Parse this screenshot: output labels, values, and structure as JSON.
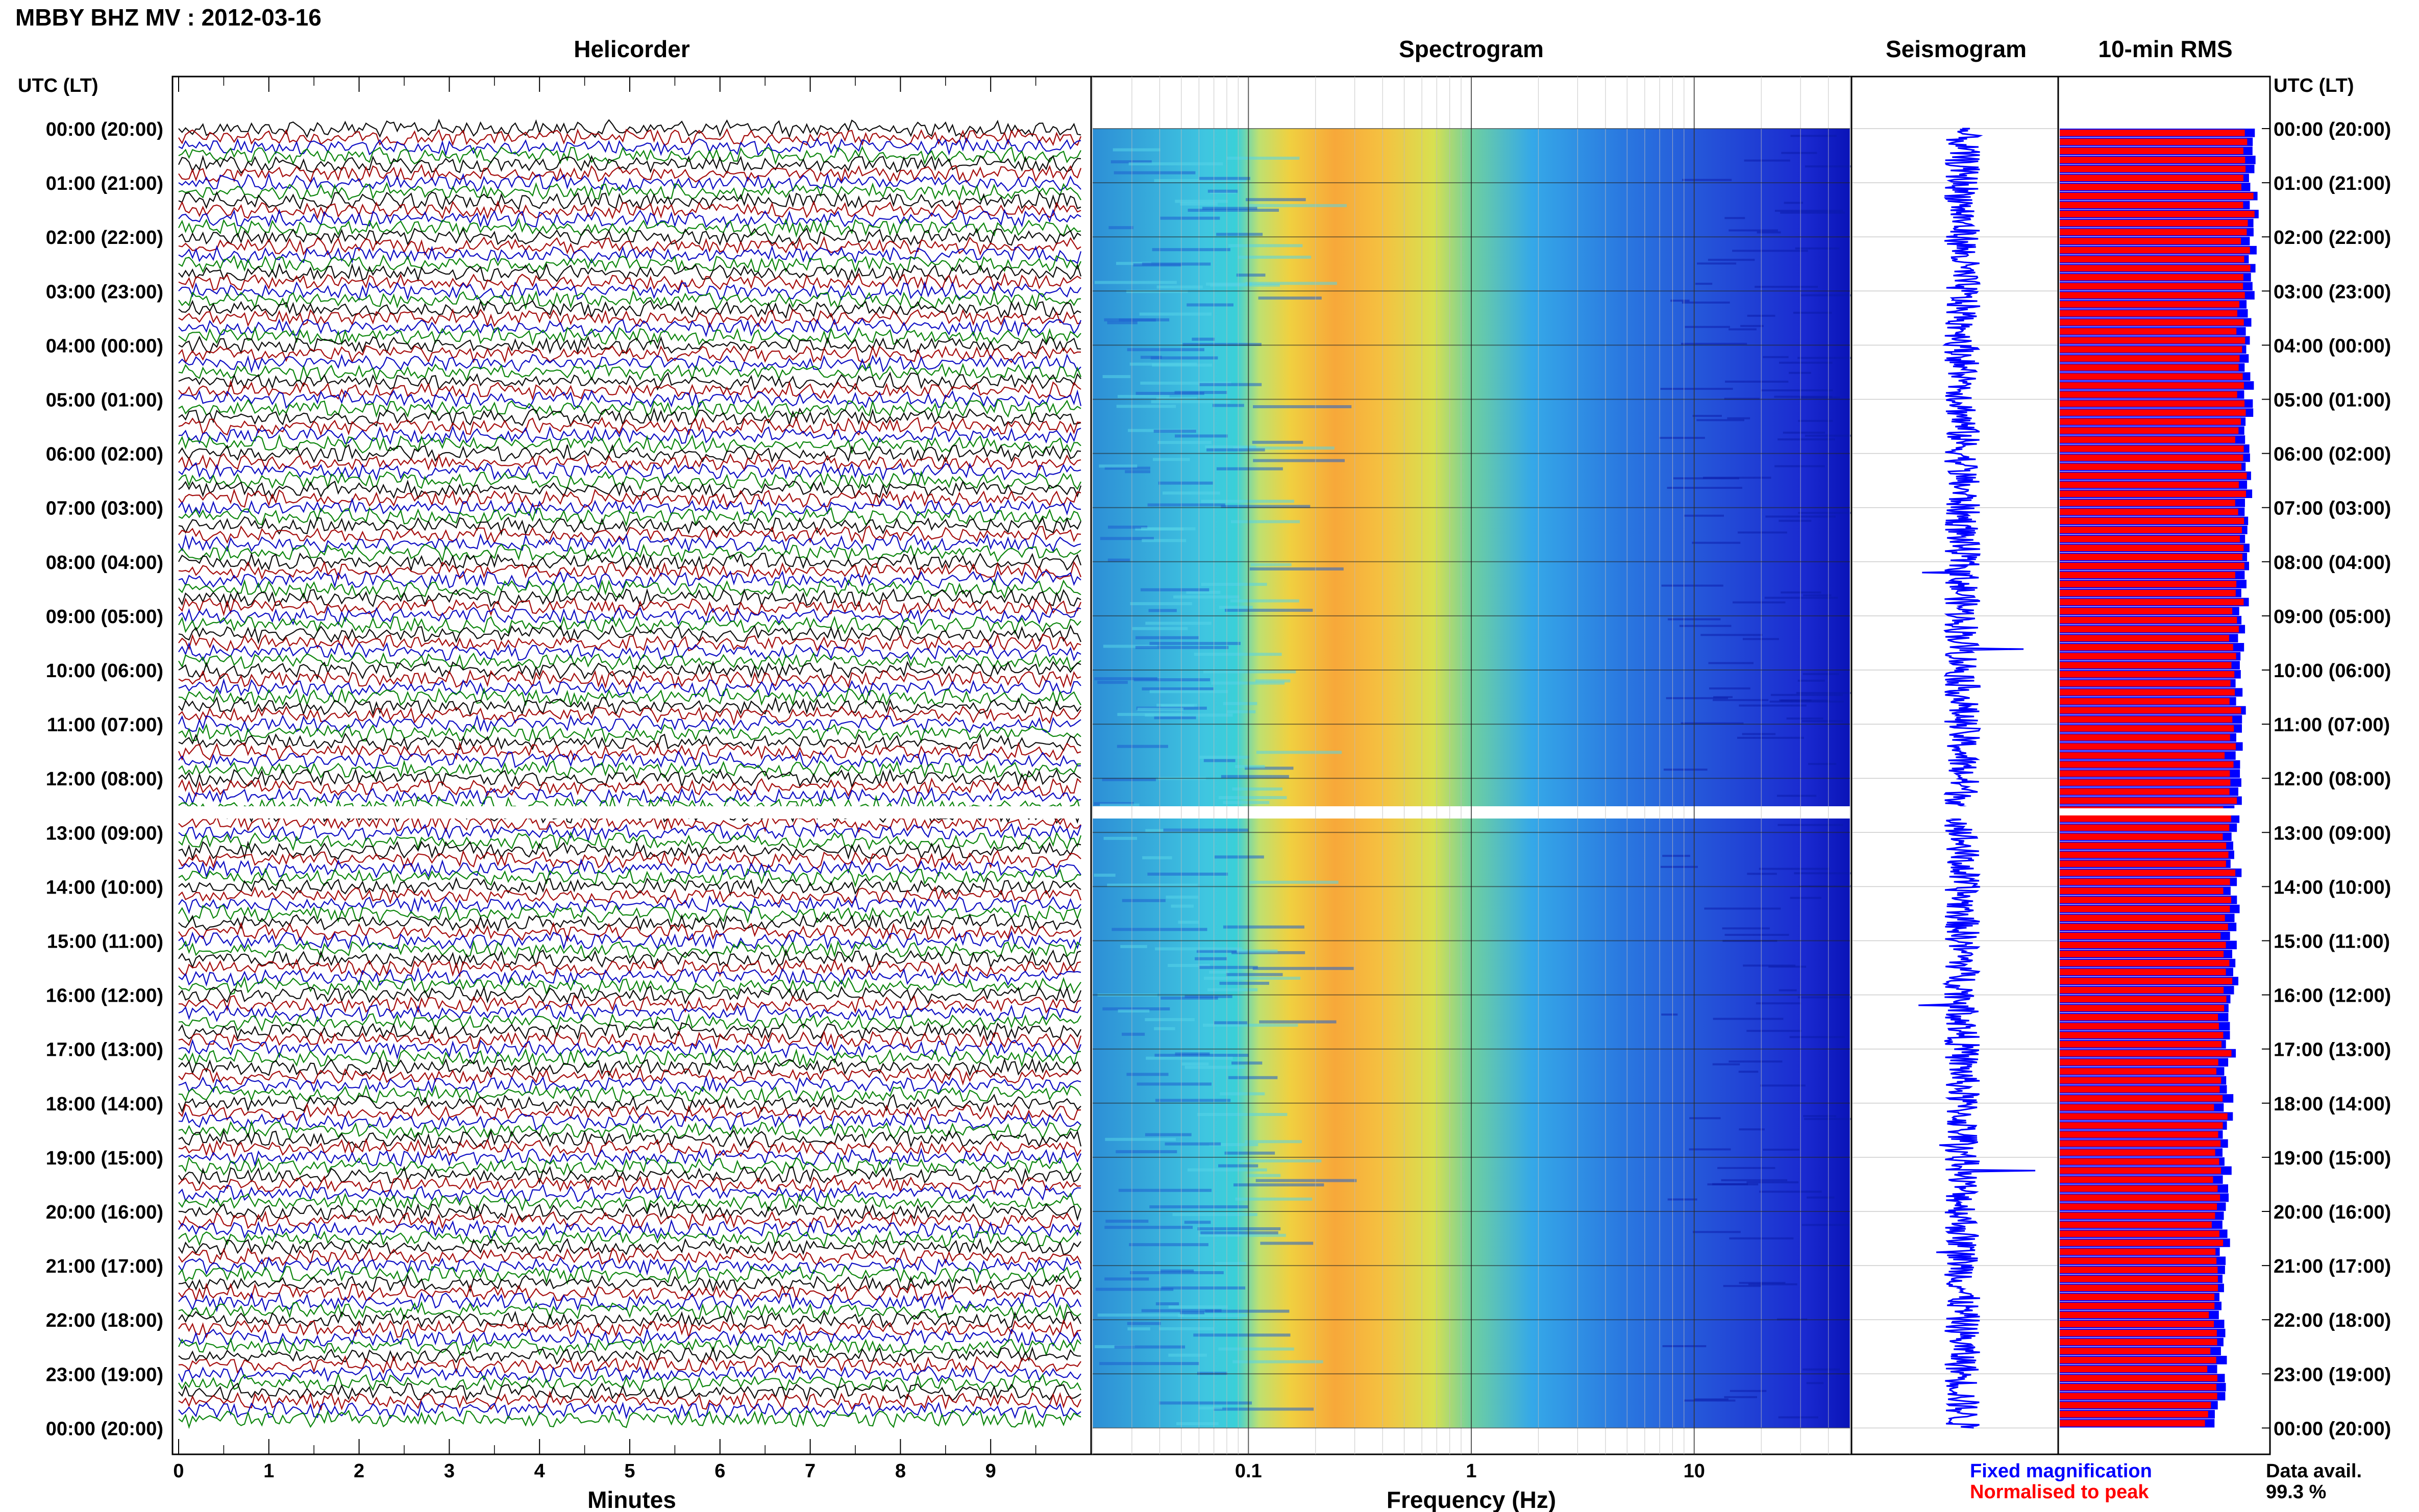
{
  "header": {
    "title": "MBBY BHZ MV : 2012-03-16",
    "time_header_left": "UTC (LT)",
    "time_header_right": "UTC (LT)"
  },
  "panels": {
    "helicorder": "Helicorder",
    "spectrogram": "Spectrogram",
    "seismogram": "Seismogram",
    "rms": "10-min RMS"
  },
  "legend": {
    "fixed_label": "Fixed magnification",
    "fixed_color": "#0000ff",
    "normalised_label": "Normalised to peak",
    "normalised_color": "#ff0000"
  },
  "data_availability": {
    "label": "Data avail.",
    "value": "99.3 %"
  },
  "colors": {
    "trace_colors": [
      "#000000",
      "#a00000",
      "#0000c0",
      "#008000"
    ],
    "gap": "#ffffff"
  },
  "chart_data": [
    {
      "type": "line",
      "panel": "helicorder",
      "xlabel": "Minutes",
      "x_ticks": [
        "0",
        "1",
        "2",
        "3",
        "4",
        "5",
        "6",
        "7",
        "8",
        "9"
      ],
      "xlim": [
        0,
        10
      ],
      "row_labels": [
        "00:00 (20:00)",
        "01:00 (21:00)",
        "02:00 (22:00)",
        "03:00 (23:00)",
        "04:00 (00:00)",
        "05:00 (01:00)",
        "06:00 (02:00)",
        "07:00 (03:00)",
        "08:00 (04:00)",
        "09:00 (05:00)",
        "10:00 (06:00)",
        "11:00 (07:00)",
        "12:00 (08:00)",
        "13:00 (09:00)",
        "14:00 (10:00)",
        "15:00 (11:00)",
        "16:00 (12:00)",
        "17:00 (13:00)",
        "18:00 (14:00)",
        "19:00 (15:00)",
        "20:00 (16:00)",
        "21:00 (17:00)",
        "22:00 (18:00)",
        "23:00 (19:00)",
        "00:00 (20:00)"
      ],
      "data_gap_utc": "12:30"
    },
    {
      "type": "heatmap",
      "panel": "spectrogram",
      "xlabel": "Frequency (Hz)",
      "x_scale": "log",
      "x_ticks": [
        "0.1",
        "1",
        "10"
      ],
      "xlim": [
        0.02,
        50
      ],
      "peak_band_hz": [
        0.2,
        0.5
      ],
      "data_gap_utc": "12:30"
    },
    {
      "type": "bar",
      "panel": "rms",
      "orientation": "horizontal",
      "interval": "10-min",
      "series": [
        {
          "name": "Fixed magnification",
          "color": "#0000ff"
        },
        {
          "name": "Normalised to peak",
          "color": "#ff0000"
        }
      ],
      "data_gap_utc": "12:30"
    }
  ]
}
